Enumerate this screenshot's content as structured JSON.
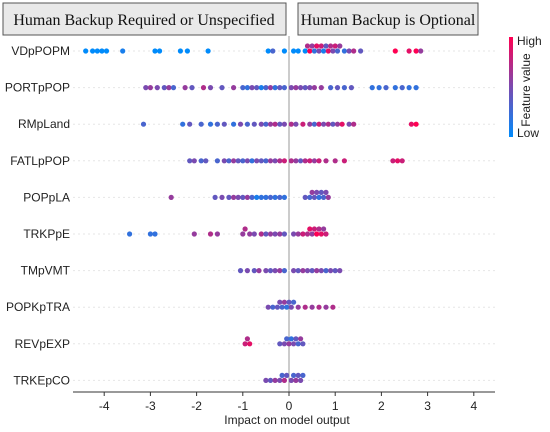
{
  "chart_data": {
    "type": "scatter",
    "subtype": "shap-beeswarm",
    "xlabel": "Impact on model output",
    "xlim": [
      -4.6,
      4.4
    ],
    "xticks": [
      -4,
      -3,
      -2,
      -1,
      0,
      1,
      2,
      3,
      4
    ],
    "zero_line": true,
    "region_labels": {
      "left": "Human Backup Required or Unspecified",
      "right": "Human Backup is Optional"
    },
    "colorbar": {
      "label": "Feature value",
      "high": "High",
      "low": "Low",
      "high_color": "#ff0052",
      "low_color": "#008bfb"
    },
    "features": [
      {
        "name": "VDpPOPM",
        "points": [
          [
            -4.4,
            0.0
          ],
          [
            -4.25,
            0.0
          ],
          [
            -4.15,
            0.0
          ],
          [
            -4.05,
            0.0
          ],
          [
            -3.95,
            0.0
          ],
          [
            -3.6,
            0.1
          ],
          [
            -2.9,
            0.0
          ],
          [
            -2.8,
            0.0
          ],
          [
            -2.35,
            0.0
          ],
          [
            -2.2,
            0.0
          ],
          [
            -1.75,
            0.0
          ],
          [
            -0.45,
            0.0
          ],
          [
            -0.35,
            0.3
          ],
          [
            -0.1,
            0.0
          ],
          [
            0.1,
            0.0
          ],
          [
            0.2,
            0.0
          ],
          [
            0.35,
            0.0
          ],
          [
            0.4,
            0.7
          ],
          [
            0.45,
            1.0
          ],
          [
            0.5,
            0.6
          ],
          [
            0.55,
            0.2
          ],
          [
            0.6,
            0.9
          ],
          [
            0.65,
            0.5
          ],
          [
            0.7,
            0.8
          ],
          [
            0.75,
            0.1
          ],
          [
            0.8,
            0.4
          ],
          [
            0.85,
            0.9
          ],
          [
            0.9,
            0.7
          ],
          [
            0.95,
            0.5
          ],
          [
            1.0,
            0.8
          ],
          [
            1.05,
            0.3
          ],
          [
            1.1,
            0.6
          ],
          [
            1.2,
            0.2
          ],
          [
            1.3,
            0.5
          ],
          [
            1.4,
            0.7
          ],
          [
            1.55,
            0.4
          ],
          [
            2.3,
            1.0
          ],
          [
            2.6,
            0.9
          ],
          [
            2.75,
            1.0
          ],
          [
            2.85,
            0.6
          ]
        ]
      },
      {
        "name": "PORTpPOP",
        "points": [
          [
            -3.1,
            0.5
          ],
          [
            -3.0,
            0.6
          ],
          [
            -2.85,
            0.5
          ],
          [
            -2.7,
            0.4
          ],
          [
            -2.6,
            0.6
          ],
          [
            -2.5,
            0.3
          ],
          [
            -2.25,
            0.6
          ],
          [
            -2.1,
            0.4
          ],
          [
            -1.85,
            0.7
          ],
          [
            -1.7,
            0.5
          ],
          [
            -1.45,
            0.4
          ],
          [
            -1.2,
            0.6
          ],
          [
            -1.0,
            0.3
          ],
          [
            -0.9,
            0.2
          ],
          [
            -0.8,
            0.5
          ],
          [
            -0.7,
            0.4
          ],
          [
            -0.6,
            0.1
          ],
          [
            -0.5,
            0.3
          ],
          [
            -0.4,
            0.6
          ],
          [
            -0.3,
            0.2
          ],
          [
            -0.2,
            0.4
          ],
          [
            -0.1,
            0.3
          ],
          [
            0.05,
            0.5
          ],
          [
            0.15,
            0.6
          ],
          [
            0.25,
            0.5
          ],
          [
            0.35,
            0.4
          ],
          [
            0.45,
            0.5
          ],
          [
            0.55,
            0.6
          ],
          [
            0.7,
            0.6
          ],
          [
            0.9,
            0.3
          ],
          [
            1.05,
            0.4
          ],
          [
            1.2,
            0.3
          ],
          [
            1.35,
            0.4
          ],
          [
            1.8,
            0.2
          ],
          [
            1.95,
            0.2
          ],
          [
            2.1,
            0.3
          ],
          [
            2.3,
            0.2
          ],
          [
            2.45,
            0.3
          ],
          [
            2.6,
            0.2
          ],
          [
            2.75,
            0.2
          ]
        ]
      },
      {
        "name": "RMpLand",
        "points": [
          [
            -3.15,
            0.3
          ],
          [
            -2.3,
            0.2
          ],
          [
            -2.15,
            0.4
          ],
          [
            -1.9,
            0.3
          ],
          [
            -1.7,
            0.2
          ],
          [
            -1.55,
            0.3
          ],
          [
            -1.4,
            0.4
          ],
          [
            -1.2,
            0.2
          ],
          [
            -1.05,
            0.5
          ],
          [
            -0.9,
            0.3
          ],
          [
            -0.75,
            0.4
          ],
          [
            -0.6,
            0.5
          ],
          [
            -0.5,
            0.3
          ],
          [
            -0.4,
            0.6
          ],
          [
            -0.3,
            0.7
          ],
          [
            -0.2,
            0.4
          ],
          [
            -0.1,
            0.5
          ],
          [
            0.05,
            0.7
          ],
          [
            0.15,
            0.5
          ],
          [
            0.3,
            0.8
          ],
          [
            0.45,
            0.6
          ],
          [
            0.55,
            0.3
          ],
          [
            0.65,
            0.8
          ],
          [
            0.75,
            0.5
          ],
          [
            0.85,
            0.7
          ],
          [
            0.95,
            0.4
          ],
          [
            1.05,
            0.6
          ],
          [
            1.15,
            0.9
          ],
          [
            1.3,
            0.5
          ],
          [
            1.4,
            0.7
          ],
          [
            2.65,
            0.9
          ],
          [
            2.75,
            1.0
          ]
        ]
      },
      {
        "name": "FATLpPOP",
        "points": [
          [
            -2.15,
            0.4
          ],
          [
            -2.05,
            0.5
          ],
          [
            -1.9,
            0.3
          ],
          [
            -1.8,
            0.4
          ],
          [
            -1.55,
            0.3
          ],
          [
            -1.4,
            0.5
          ],
          [
            -1.3,
            0.3
          ],
          [
            -1.2,
            0.6
          ],
          [
            -1.1,
            0.4
          ],
          [
            -1.0,
            0.3
          ],
          [
            -0.9,
            0.5
          ],
          [
            -0.8,
            0.2
          ],
          [
            -0.7,
            0.5
          ],
          [
            -0.6,
            0.4
          ],
          [
            -0.5,
            0.3
          ],
          [
            -0.4,
            0.6
          ],
          [
            -0.3,
            0.5
          ],
          [
            -0.2,
            0.7
          ],
          [
            -0.1,
            0.8
          ],
          [
            0.05,
            0.7
          ],
          [
            0.15,
            0.6
          ],
          [
            0.25,
            0.4
          ],
          [
            0.35,
            0.7
          ],
          [
            0.45,
            0.8
          ],
          [
            0.55,
            0.6
          ],
          [
            0.65,
            0.8
          ],
          [
            0.8,
            0.7
          ],
          [
            1.0,
            0.7
          ],
          [
            1.2,
            0.8
          ],
          [
            2.25,
            0.8
          ],
          [
            2.35,
            0.9
          ],
          [
            2.45,
            0.8
          ]
        ]
      },
      {
        "name": "POPpLA",
        "points": [
          [
            -2.55,
            0.6
          ],
          [
            -1.6,
            0.4
          ],
          [
            -1.45,
            0.5
          ],
          [
            -1.3,
            0.4
          ],
          [
            -1.2,
            0.6
          ],
          [
            -1.1,
            0.5
          ],
          [
            -1.0,
            0.4
          ],
          [
            -0.9,
            0.6
          ],
          [
            -0.8,
            0.3
          ],
          [
            -0.7,
            0.1
          ],
          [
            -0.6,
            0.2
          ],
          [
            -0.5,
            0.2
          ],
          [
            -0.4,
            0.3
          ],
          [
            -0.3,
            0.2
          ],
          [
            -0.2,
            0.3
          ],
          [
            -0.1,
            0.2
          ],
          [
            0.35,
            0.4
          ],
          [
            0.45,
            0.3
          ],
          [
            0.5,
            0.6
          ],
          [
            0.55,
            0.4
          ],
          [
            0.6,
            0.5
          ],
          [
            0.65,
            0.2
          ],
          [
            0.7,
            0.4
          ],
          [
            0.75,
            0.3
          ],
          [
            0.8,
            0.5
          ],
          [
            0.85,
            0.6
          ]
        ]
      },
      {
        "name": "TRKPpE",
        "points": [
          [
            -3.45,
            0.2
          ],
          [
            -3.0,
            0.2
          ],
          [
            -2.9,
            0.2
          ],
          [
            -2.05,
            0.6
          ],
          [
            -1.7,
            0.7
          ],
          [
            -1.55,
            0.6
          ],
          [
            -1.0,
            0.6
          ],
          [
            -0.95,
            0.7
          ],
          [
            -0.85,
            0.6
          ],
          [
            -0.75,
            0.5
          ],
          [
            -0.6,
            0.7
          ],
          [
            -0.5,
            0.4
          ],
          [
            -0.4,
            0.6
          ],
          [
            -0.3,
            0.5
          ],
          [
            -0.2,
            0.6
          ],
          [
            -0.1,
            0.4
          ],
          [
            0.1,
            0.5
          ],
          [
            0.2,
            0.6
          ],
          [
            0.3,
            0.8
          ],
          [
            0.4,
            0.7
          ],
          [
            0.45,
            0.9
          ],
          [
            0.5,
            0.6
          ],
          [
            0.55,
            0.8
          ],
          [
            0.6,
            1.0
          ],
          [
            0.65,
            0.7
          ],
          [
            0.7,
            0.9
          ],
          [
            0.75,
            0.6
          ],
          [
            0.8,
            0.8
          ]
        ]
      },
      {
        "name": "TMpVMT",
        "points": [
          [
            -1.05,
            0.4
          ],
          [
            -0.9,
            0.5
          ],
          [
            -0.75,
            0.4
          ],
          [
            -0.65,
            0.6
          ],
          [
            -0.5,
            0.5
          ],
          [
            -0.4,
            0.4
          ],
          [
            -0.3,
            0.5
          ],
          [
            -0.2,
            0.6
          ],
          [
            -0.1,
            0.3
          ],
          [
            0.1,
            0.5
          ],
          [
            0.2,
            0.4
          ],
          [
            0.3,
            0.6
          ],
          [
            0.4,
            0.5
          ],
          [
            0.5,
            0.4
          ],
          [
            0.6,
            0.6
          ],
          [
            0.7,
            0.5
          ],
          [
            0.8,
            0.3
          ],
          [
            0.9,
            0.5
          ],
          [
            1.0,
            0.4
          ],
          [
            1.1,
            0.5
          ]
        ]
      },
      {
        "name": "POPKpTRA",
        "points": [
          [
            -0.45,
            0.5
          ],
          [
            -0.35,
            0.3
          ],
          [
            -0.25,
            0.4
          ],
          [
            -0.2,
            0.5
          ],
          [
            -0.15,
            0.3
          ],
          [
            -0.1,
            0.6
          ],
          [
            -0.05,
            0.2
          ],
          [
            0.0,
            0.4
          ],
          [
            0.05,
            0.5
          ],
          [
            0.1,
            0.3
          ],
          [
            0.2,
            0.6
          ],
          [
            0.35,
            0.7
          ],
          [
            0.5,
            0.6
          ],
          [
            0.65,
            0.7
          ],
          [
            0.8,
            0.6
          ],
          [
            0.95,
            0.7
          ]
        ]
      },
      {
        "name": "REVpEXP",
        "points": [
          [
            -0.95,
            0.8
          ],
          [
            -0.9,
            0.7
          ],
          [
            -0.85,
            0.9
          ],
          [
            -0.2,
            0.4
          ],
          [
            -0.1,
            0.5
          ],
          [
            -0.05,
            0.3
          ],
          [
            0.0,
            0.6
          ],
          [
            0.05,
            0.2
          ],
          [
            0.1,
            0.5
          ],
          [
            0.15,
            0.4
          ],
          [
            0.2,
            0.3
          ],
          [
            0.25,
            0.6
          ],
          [
            0.3,
            0.4
          ]
        ]
      },
      {
        "name": "TRKEpCO",
        "points": [
          [
            -0.5,
            0.5
          ],
          [
            -0.4,
            0.4
          ],
          [
            -0.3,
            0.6
          ],
          [
            -0.2,
            0.5
          ],
          [
            -0.15,
            0.3
          ],
          [
            -0.1,
            0.7
          ],
          [
            -0.05,
            0.4
          ],
          [
            0.05,
            0.5
          ],
          [
            0.1,
            0.3
          ],
          [
            0.15,
            0.6
          ],
          [
            0.2,
            0.4
          ],
          [
            0.25,
            0.5
          ],
          [
            0.3,
            0.3
          ]
        ]
      }
    ]
  }
}
